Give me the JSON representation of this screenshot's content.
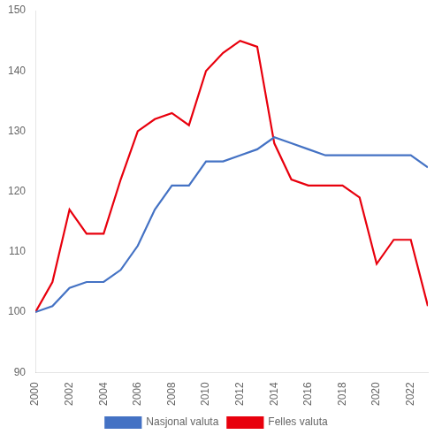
{
  "chart_data": {
    "type": "line",
    "x": [
      2000,
      2001,
      2002,
      2003,
      2004,
      2005,
      2006,
      2007,
      2008,
      2009,
      2010,
      2011,
      2012,
      2013,
      2014,
      2015,
      2016,
      2017,
      2018,
      2019,
      2020,
      2021,
      2022,
      2023
    ],
    "series": [
      {
        "name": "Nasjonal valuta",
        "color": "#4472C4",
        "values": [
          100,
          101,
          104,
          105,
          105,
          107,
          111,
          117,
          121,
          121,
          125,
          125,
          126,
          127,
          129,
          128,
          127,
          126,
          126,
          126,
          126,
          126,
          126,
          124
        ]
      },
      {
        "name": "Felles valuta",
        "color": "#E8000D",
        "values": [
          100,
          105,
          117,
          113,
          113,
          122,
          130,
          132,
          133,
          131,
          140,
          143,
          145,
          144,
          128,
          122,
          121,
          121,
          121,
          119,
          108,
          112,
          112,
          101
        ]
      }
    ],
    "xlim": [
      2000,
      2023
    ],
    "xticks": [
      2000,
      2002,
      2004,
      2006,
      2008,
      2010,
      2012,
      2014,
      2016,
      2018,
      2020,
      2022
    ],
    "ylim": [
      90,
      150
    ],
    "yticks": [
      90,
      100,
      110,
      120,
      130,
      140,
      150
    ],
    "grid": false,
    "legend": "bottom"
  }
}
